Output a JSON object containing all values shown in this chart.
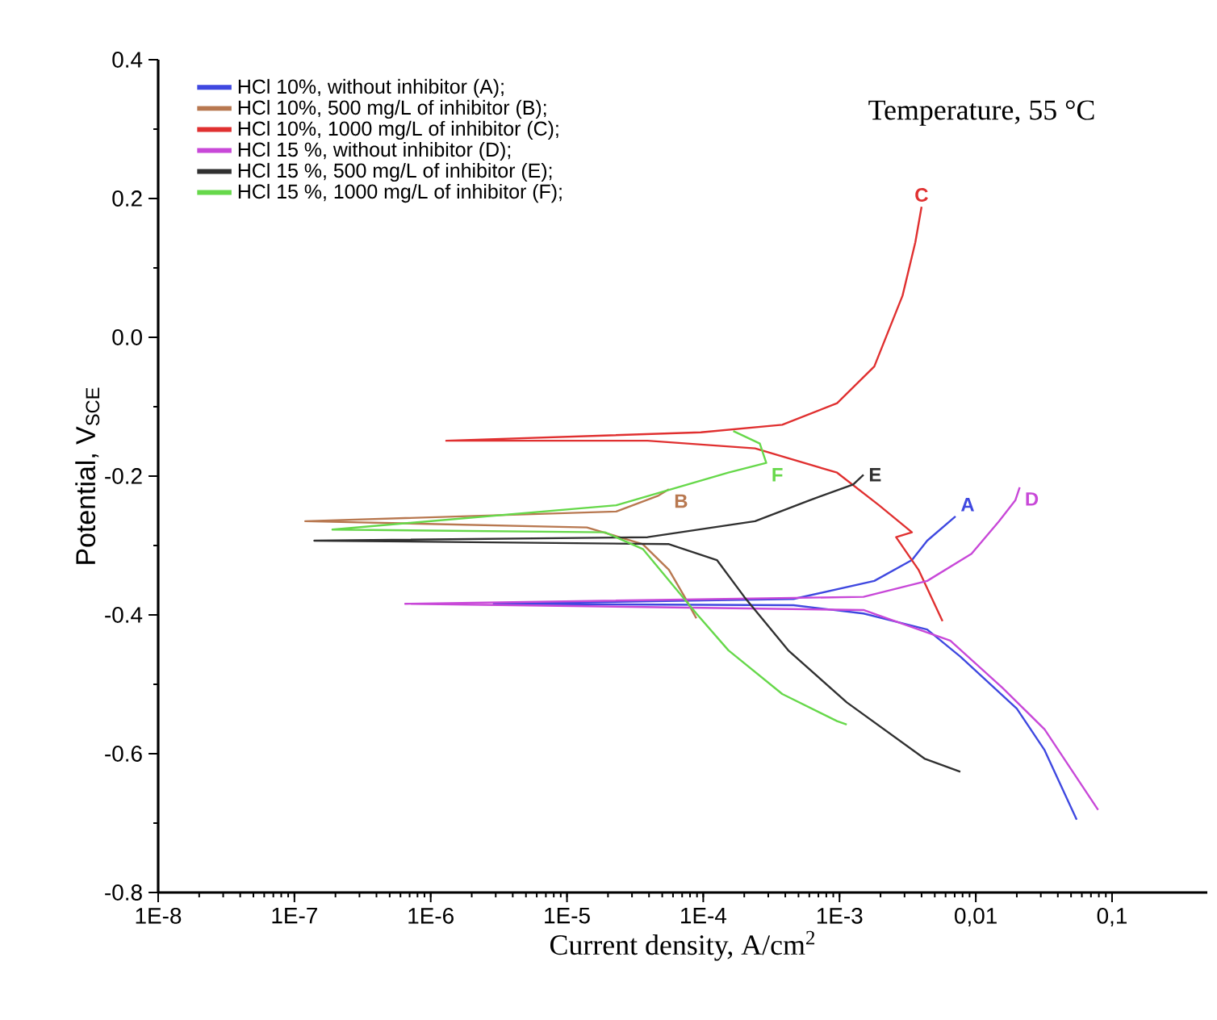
{
  "chart_data": {
    "type": "line",
    "xlabel": "Current density, A/cm$^{2}$",
    "ylabel": "Potential, V$_{SCE}$",
    "log": "x",
    "legend": "top left",
    "xlim": [
      1e-08,
      0.5
    ],
    "ylim": [
      -0.8,
      0.4
    ],
    "xticks": [
      {
        "value": 1e-08,
        "label": "1E-8"
      },
      {
        "value": 1e-07,
        "label": "1E-7"
      },
      {
        "value": 1e-06,
        "label": "1E-6"
      },
      {
        "value": 1e-05,
        "label": "1E-5"
      },
      {
        "value": 0.0001,
        "label": "1E-4"
      },
      {
        "value": 0.001,
        "label": "1E-3"
      },
      {
        "value": 0.01,
        "label": "0,01"
      },
      {
        "value": 0.1,
        "label": "0,1"
      }
    ],
    "yticks": [
      -0.8,
      -0.6,
      -0.4,
      -0.2,
      {
        "value": 0,
        "label": "0.0"
      },
      0.2,
      0.4
    ],
    "series": [
      {
        "name": "HCl 10%, without inhibitor  (A);",
        "color": "#3f48e0",
        "x": [
          0.055,
          0.032,
          0.02,
          0.0077,
          0.0044,
          0.0015,
          0.00046,
          2.9e-06,
          0.00046,
          0.0018,
          0.0034,
          0.0044,
          0.0071
        ],
        "values": [
          -0.695,
          -0.595,
          -0.535,
          -0.46,
          -0.421,
          -0.398,
          -0.386,
          -0.384,
          -0.377,
          -0.351,
          -0.321,
          -0.293,
          -0.258
        ]
      },
      {
        "name": "HCl 10%, 500 mg/L of inhibitor (B);",
        "color": "#b87850",
        "x": [
          8.9e-05,
          7.3e-05,
          5.6e-05,
          3.6e-05,
          1.4e-05,
          1.2e-07,
          2.3e-05,
          4.7e-05,
          5.6e-05
        ],
        "values": [
          -0.405,
          -0.374,
          -0.335,
          -0.298,
          -0.274,
          -0.265,
          -0.251,
          -0.228,
          -0.219
        ]
      },
      {
        "name": "HCl 10%, 1000 mg/L of inhibitor (C);",
        "color": "#e03030",
        "x": [
          0.0057,
          0.0038,
          0.0026,
          0.0034,
          0.00195,
          0.00096,
          0.00024,
          3.9e-05,
          1.3e-06,
          9.6e-05,
          0.00038,
          0.00096,
          0.0018,
          0.0029,
          0.0036,
          0.004
        ],
        "values": [
          -0.409,
          -0.335,
          -0.288,
          -0.281,
          -0.242,
          -0.195,
          -0.16,
          -0.149,
          -0.149,
          -0.137,
          -0.126,
          -0.095,
          -0.042,
          0.06,
          0.137,
          0.188
        ]
      },
      {
        "name": "HCl 15 %, without inhibitor (D);",
        "color": "#c848d8",
        "x": [
          0.079,
          0.032,
          0.0157,
          0.0065,
          0.0015,
          6.5e-07,
          0.0015,
          0.0044,
          0.0093,
          0.0148,
          0.0195,
          0.021
        ],
        "values": [
          -0.681,
          -0.565,
          -0.505,
          -0.437,
          -0.393,
          -0.384,
          -0.374,
          -0.351,
          -0.312,
          -0.265,
          -0.235,
          -0.216
        ]
      },
      {
        "name": "HCl 15 %, 500 mg/L of inhibitor (E);",
        "color": "#303030",
        "x": [
          0.0077,
          0.0042,
          0.00113,
          0.00042,
          0.0002,
          0.000126,
          5.6e-05,
          1.4e-07,
          3.9e-05,
          0.00024,
          0.0006,
          0.00126,
          0.0015
        ],
        "values": [
          -0.626,
          -0.607,
          -0.526,
          -0.451,
          -0.374,
          -0.321,
          -0.298,
          -0.293,
          -0.288,
          -0.265,
          -0.235,
          -0.212,
          -0.198
        ]
      },
      {
        "name": "HCl 15 %, 1000 mg/L of inhibitor (F);",
        "color": "#66d84a",
        "x": [
          0.00113,
          0.00096,
          0.00038,
          0.000153,
          8.9e-05,
          3.6e-05,
          1.9e-05,
          1.9e-07,
          2.3e-05,
          0.000153,
          0.00029,
          0.00026,
          0.000166
        ],
        "values": [
          -0.558,
          -0.553,
          -0.514,
          -0.451,
          -0.398,
          -0.305,
          -0.281,
          -0.277,
          -0.242,
          -0.195,
          -0.181,
          -0.153,
          -0.135
        ]
      }
    ],
    "annotations": [
      "Temperature,  55 °C",
      {
        "text": "A",
        "x": 0.0071,
        "y": -0.258
      },
      {
        "text": "B",
        "x": 5.6e-05,
        "y": -0.219
      },
      {
        "text": "C",
        "x": 0.004,
        "y": 0.188
      },
      {
        "text": "D",
        "x": 0.021,
        "y": -0.216
      },
      {
        "text": "E",
        "x": 0.0015,
        "y": -0.198
      },
      {
        "text": "F",
        "x": 0.00029,
        "y": -0.181
      }
    ]
  }
}
